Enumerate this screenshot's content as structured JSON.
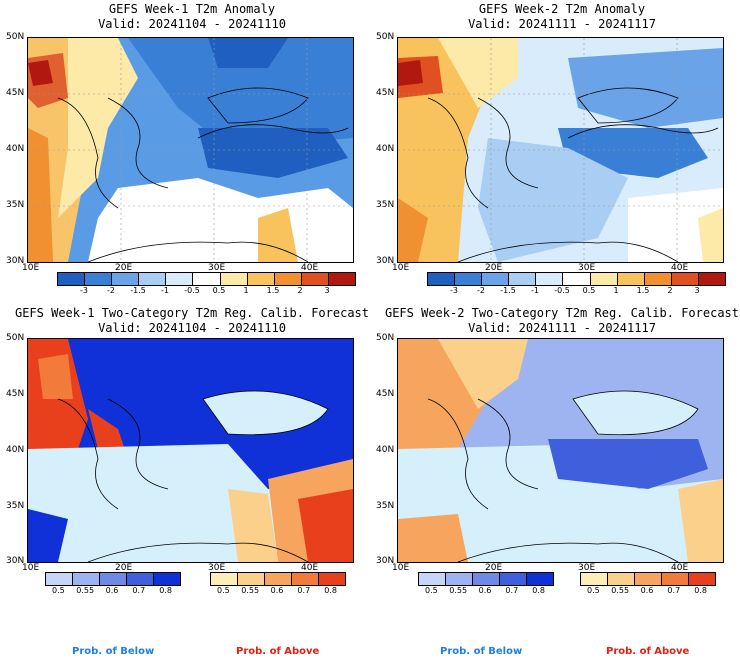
{
  "panels": [
    {
      "title1": "GEFS Week-1 T2m Anomaly",
      "title2": "Valid: 20241104 - 20241110"
    },
    {
      "title1": "GEFS Week-2 T2m Anomaly",
      "title2": "Valid: 20241111 - 20241117"
    },
    {
      "title1": "GEFS Week-1 Two-Category T2m Reg. Calib. Forecast",
      "title2": "Valid: 20241104 - 20241110"
    },
    {
      "title1": "GEFS Week-2 Two-Category T2m Reg. Calib. Forecast",
      "title2": "Valid: 20241111 - 20241117"
    }
  ],
  "axes": {
    "lat": [
      "50N",
      "45N",
      "40N",
      "35N",
      "30N"
    ],
    "lon": [
      "10E",
      "20E",
      "30E",
      "40E"
    ]
  },
  "anomaly_colorbar": {
    "labels": [
      "-3",
      "-2",
      "-1.5",
      "-1",
      "-0.5",
      "0.5",
      "1",
      "1.5",
      "2",
      "3"
    ],
    "colors": [
      "#1f5fbf",
      "#3a7fd6",
      "#6aa3e8",
      "#a9cdf3",
      "#d8ecfb",
      "#ffffff",
      "#fde9a8",
      "#f8c25c",
      "#f09030",
      "#e05020",
      "#b01810"
    ]
  },
  "prob_colorbar": {
    "below_labels": [
      "0.5",
      "0.55",
      "0.6",
      "0.7",
      "0.8"
    ],
    "below_colors": [
      "#c6d6f7",
      "#9db4f0",
      "#7189e6",
      "#3f5fdc",
      "#1030d8"
    ],
    "above_labels": [
      "0.5",
      "0.55",
      "0.6",
      "0.7",
      "0.8"
    ],
    "above_colors": [
      "#fdeeb7",
      "#fbd08a",
      "#f7a55e",
      "#f27a3a",
      "#e8401c"
    ]
  },
  "legend": {
    "below": "Prob. of Below",
    "above": "Prob. of Above",
    "below_color": "#1e7fe0",
    "above_color": "#e02010"
  }
}
